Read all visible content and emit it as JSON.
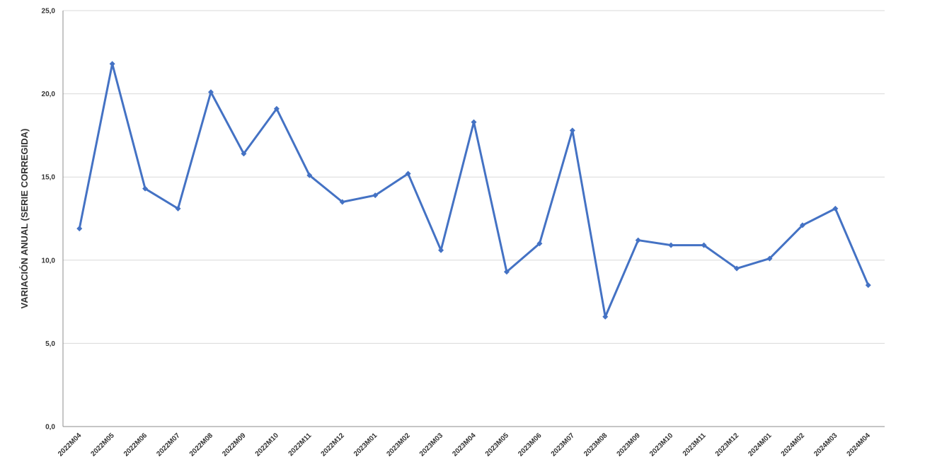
{
  "chart_data": {
    "type": "line",
    "title": "",
    "xlabel": "",
    "ylabel": "VARIACIÓN ANUAL (SERIE CORREGIDA)",
    "ylim": [
      0,
      25
    ],
    "yticks": [
      "0,0",
      "5,0",
      "10,0",
      "15,0",
      "20,0",
      "25,0"
    ],
    "grid": true,
    "legend": "none",
    "line_color": "#4472C4",
    "categories": [
      "2022M04",
      "2022M05",
      "2022M06",
      "2022M07",
      "2022M08",
      "2022M09",
      "2022M10",
      "2022M11",
      "2022M12",
      "2023M01",
      "2023M02",
      "2023M03",
      "2023M04",
      "2023M05",
      "2023M06",
      "2023M07",
      "2023M08",
      "2023M09",
      "2023M10",
      "2023M11",
      "2023M12",
      "2024M01",
      "2024M02",
      "2024M03",
      "2024M04"
    ],
    "series": [
      {
        "values": [
          11.9,
          21.8,
          14.3,
          13.1,
          20.1,
          16.4,
          19.1,
          15.1,
          13.5,
          13.9,
          15.2,
          10.6,
          18.3,
          9.3,
          11.0,
          17.8,
          6.6,
          11.2,
          10.9,
          10.9,
          9.5,
          10.1,
          12.1,
          13.1,
          8.5
        ]
      }
    ]
  }
}
